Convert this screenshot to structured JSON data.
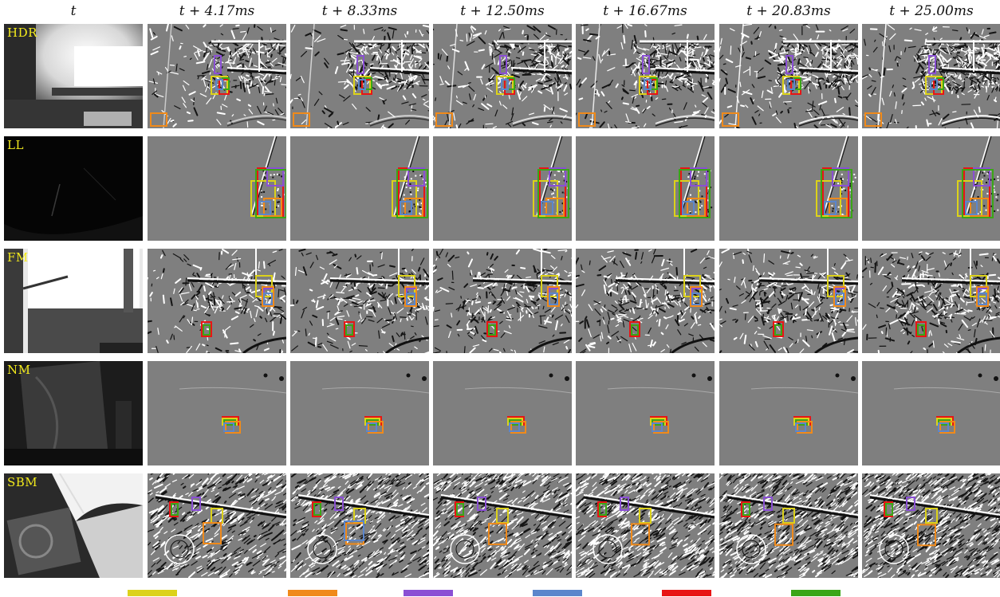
{
  "columns": [
    "t",
    "t + 4.17ms",
    "t + 8.33ms",
    "t + 12.50ms",
    "t + 16.67ms",
    "t + 20.83ms",
    "t + 25.00ms"
  ],
  "rows": [
    {
      "label": "HDR",
      "scene": "hdr"
    },
    {
      "label": "LL",
      "scene": "ll"
    },
    {
      "label": "FM",
      "scene": "fm"
    },
    {
      "label": "NM",
      "scene": "nm"
    },
    {
      "label": "SBM",
      "scene": "sbm"
    }
  ],
  "box_colors": {
    "yellow": "#dcd21a",
    "orange": "#f08a1a",
    "purple": "#8a4fd4",
    "blue": "#5b86cc",
    "red": "#e81515",
    "green": "#3aa617"
  },
  "legend": [
    "#dcd21a",
    "#f08a1a",
    "#8a4fd4",
    "#5b86cc",
    "#e81515",
    "#3aa617"
  ]
}
